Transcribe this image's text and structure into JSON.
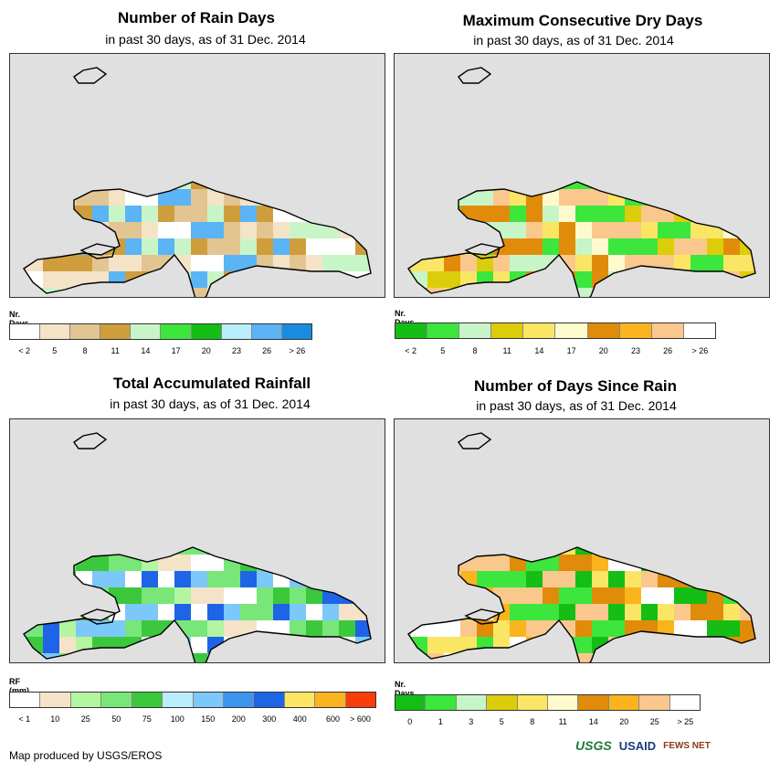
{
  "panels": [
    {
      "title": "Number of Rain Days",
      "subtitle": "in past 30 days, as of 31 Dec. 2014",
      "legend_title": "Nr. Days",
      "legend_colors": [
        "#ffffff",
        "#f5e3c8",
        "#e2c591",
        "#cf9e3c",
        "#c8f5c8",
        "#3ce63c",
        "#14be14",
        "#b9eefa",
        "#5ab4f5",
        "#1a8ce0"
      ],
      "legend_labels": [
        "< 2",
        "5",
        "8",
        "11",
        "14",
        "17",
        "20",
        "23",
        "26",
        "> 26"
      ]
    },
    {
      "title": "Maximum Consecutive Dry Days",
      "subtitle": "in past 30 days, as of 31 Dec. 2014",
      "legend_title": "Nr. Days",
      "legend_colors": [
        "#14be14",
        "#3ce63c",
        "#c8f5c8",
        "#dccd0a",
        "#fae664",
        "#fffacd",
        "#e08c0a",
        "#fab41e",
        "#fac88c",
        "#ffffff"
      ],
      "legend_labels": [
        "< 2",
        "5",
        "8",
        "11",
        "14",
        "17",
        "20",
        "23",
        "26",
        "> 26"
      ]
    },
    {
      "title": "Total Accumulated Rainfall",
      "subtitle": "in past 30 days, as of 31 Dec. 2014",
      "legend_title": "RF (mm)",
      "legend_colors": [
        "#ffffff",
        "#f5e3c8",
        "#b4f5a0",
        "#78e678",
        "#3cc83c",
        "#b9eefa",
        "#7cc8fa",
        "#3c96f0",
        "#1e64e6",
        "#fae664",
        "#fab41e",
        "#fa3c0a"
      ],
      "legend_labels": [
        "< 1",
        "10",
        "25",
        "50",
        "75",
        "100",
        "150",
        "200",
        "300",
        "400",
        "600",
        "> 600"
      ]
    },
    {
      "title": "Number of Days Since Rain",
      "subtitle": "in past 30 days, as of 31 Dec. 2014",
      "legend_title": "Nr. Days",
      "legend_colors": [
        "#14be14",
        "#3ce63c",
        "#c8f5c8",
        "#dccd0a",
        "#fae664",
        "#fffacd",
        "#e08c0a",
        "#fab41e",
        "#fac88c",
        "#ffffff"
      ],
      "legend_labels": [
        "0",
        "1",
        "3",
        "5",
        "8",
        "11",
        "14",
        "20",
        "25",
        "> 25"
      ]
    }
  ],
  "footer": "Map produced by USGS/EROS",
  "logos": {
    "usgs": "USGS",
    "usaid": "USAID",
    "fews": "FEWS NET"
  }
}
